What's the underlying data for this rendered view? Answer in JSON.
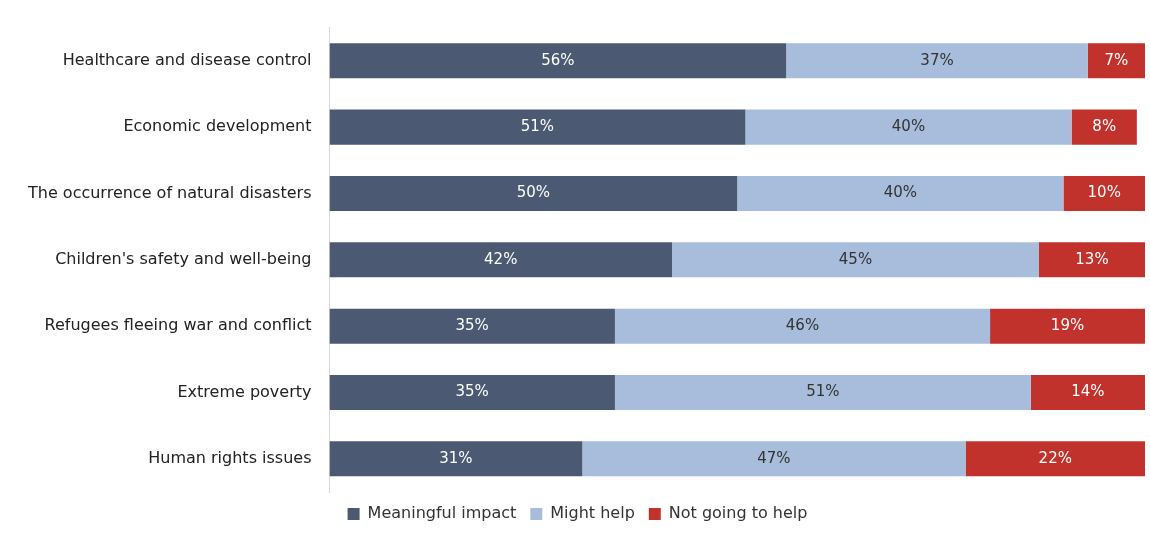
{
  "chart_data": {
    "type": "bar",
    "orientation": "horizontal",
    "stacked": true,
    "categories": [
      "Healthcare and disease control",
      "Economic development",
      "The occurrence of natural disasters",
      "Children's safety and well-being",
      "Refugees fleeing war and conflict",
      "Extreme poverty",
      "Human rights issues"
    ],
    "series": [
      {
        "name": "Meaningful impact",
        "color": "#4b5a72",
        "values": [
          56,
          51,
          50,
          42,
          35,
          35,
          31
        ],
        "value_labels": [
          "56%",
          "51%",
          "50%",
          "42%",
          "35%",
          "35%",
          "31%"
        ]
      },
      {
        "name": "Might help",
        "color": "#a7bddb",
        "values": [
          37,
          40,
          40,
          45,
          46,
          51,
          47
        ],
        "value_labels": [
          "37%",
          "40%",
          "40%",
          "45%",
          "46%",
          "51%",
          "47%"
        ]
      },
      {
        "name": "Not going to help",
        "color": "#c0322b",
        "values": [
          7,
          8,
          10,
          13,
          19,
          14,
          22
        ],
        "value_labels": [
          "7%",
          "8%",
          "10%",
          "13%",
          "19%",
          "14%",
          "22%"
        ]
      }
    ],
    "legend": "bottom",
    "grid": false,
    "tick_labels": "y"
  }
}
